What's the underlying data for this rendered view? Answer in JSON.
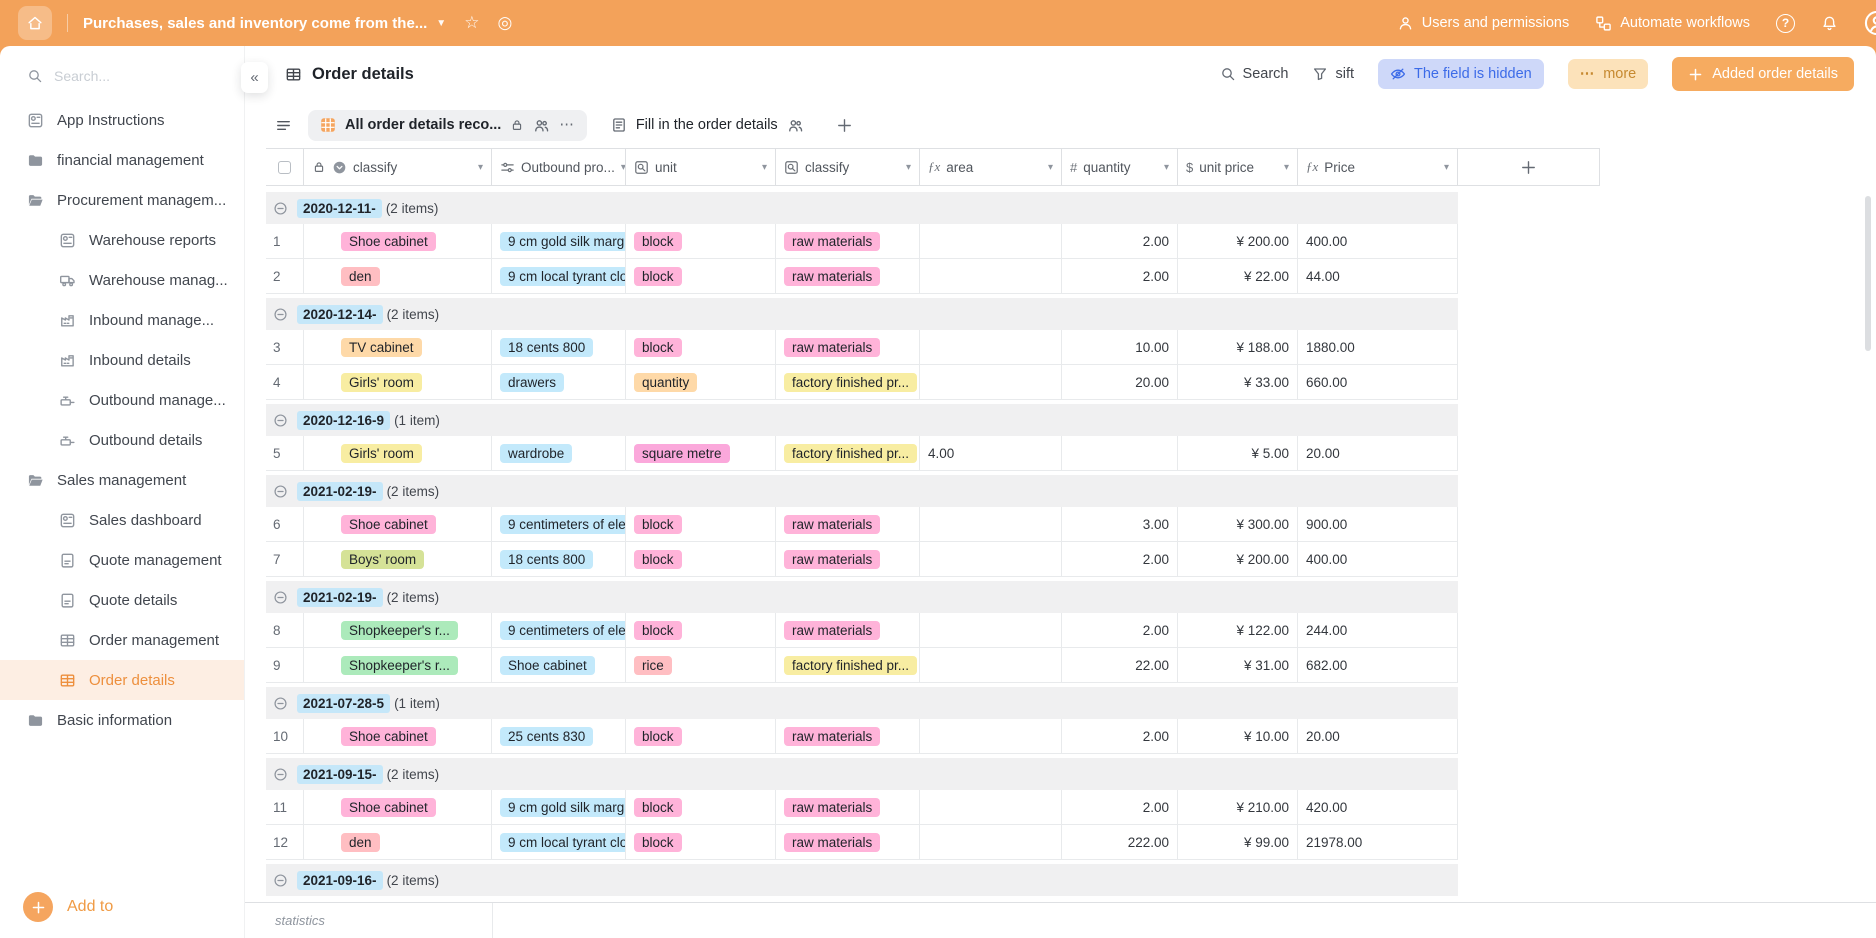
{
  "topbar": {
    "title": "Purchases, sales and inventory come from the...",
    "users_permissions": "Users and permissions",
    "automate_workflows": "Automate workflows",
    "help": "?"
  },
  "sidebar": {
    "search_placeholder": "Search...",
    "items": [
      {
        "label": "App Instructions",
        "icon": "chart",
        "depth": 0
      },
      {
        "label": "financial management",
        "icon": "folder",
        "depth": 0
      },
      {
        "label": "Procurement managem...",
        "icon": "folder-open",
        "depth": 0
      },
      {
        "label": "Warehouse reports",
        "icon": "chart",
        "depth": 1
      },
      {
        "label": "Warehouse manag...",
        "icon": "truck",
        "depth": 1
      },
      {
        "label": "Inbound manage...",
        "icon": "factory",
        "depth": 1
      },
      {
        "label": "Inbound details",
        "icon": "factory",
        "depth": 1
      },
      {
        "label": "Outbound manage...",
        "icon": "valve",
        "depth": 1
      },
      {
        "label": "Outbound details",
        "icon": "valve",
        "depth": 1
      },
      {
        "label": "Sales management",
        "icon": "folder-open",
        "depth": 0
      },
      {
        "label": "Sales dashboard",
        "icon": "chart",
        "depth": 1
      },
      {
        "label": "Quote management",
        "icon": "doc",
        "depth": 1
      },
      {
        "label": "Quote details",
        "icon": "doc",
        "depth": 1
      },
      {
        "label": "Order management",
        "icon": "book",
        "depth": 1
      },
      {
        "label": "Order details",
        "icon": "book",
        "depth": 1,
        "active": true
      },
      {
        "label": "Basic information",
        "icon": "folder",
        "depth": 0
      }
    ],
    "add_button": "Add to"
  },
  "header": {
    "title": "Order details",
    "search": "Search",
    "filter": "sift",
    "hidden_field": "The field is hidden",
    "more": "more",
    "add_record": "Added order details"
  },
  "tabs": {
    "active": "All order details reco...",
    "second": "Fill in the order details"
  },
  "table": {
    "columns": [
      {
        "label": "classify",
        "icon": "select",
        "locked": true
      },
      {
        "label": "Outbound pro...",
        "icon": "relation"
      },
      {
        "label": "unit",
        "icon": "lookup"
      },
      {
        "label": "classify",
        "icon": "lookup"
      },
      {
        "label": "area",
        "icon": "fx"
      },
      {
        "label": "quantity",
        "icon": "hash"
      },
      {
        "label": "unit price",
        "icon": "dollar"
      },
      {
        "label": "Price",
        "icon": "fx"
      }
    ],
    "tag_colors": {
      "pink": "#FFB3D9",
      "salmon": "#FFBEC2",
      "blue": "#C3E9FB",
      "orange": "#FED9A8",
      "yellow": "#F8EDA2",
      "lime": "#D5E297",
      "green": "#ACEABB",
      "magenta": "#FBA8DB"
    },
    "groups": [
      {
        "date": "2020-12-11-",
        "count": "(2 items)",
        "rows": [
          {
            "num": "1",
            "classify": {
              "text": "Shoe cabinet",
              "color": "pink"
            },
            "product": {
              "text": "9 cm gold silk marg",
              "color": "blue"
            },
            "unit": {
              "text": "block",
              "color": "pink"
            },
            "classify2": {
              "text": "raw materials",
              "color": "pink"
            },
            "area": "",
            "quantity": "2.00",
            "unit_price": "¥ 200.00",
            "price": "400.00"
          },
          {
            "num": "2",
            "classify": {
              "text": "den",
              "color": "salmon"
            },
            "product": {
              "text": "9 cm local tyrant clot",
              "color": "blue"
            },
            "unit": {
              "text": "block",
              "color": "pink"
            },
            "classify2": {
              "text": "raw materials",
              "color": "pink"
            },
            "area": "",
            "quantity": "2.00",
            "unit_price": "¥ 22.00",
            "price": "44.00"
          }
        ]
      },
      {
        "date": "2020-12-14-",
        "count": "(2 items)",
        "rows": [
          {
            "num": "3",
            "classify": {
              "text": "TV cabinet",
              "color": "orange"
            },
            "product": {
              "text": "18 cents 800",
              "color": "blue"
            },
            "unit": {
              "text": "block",
              "color": "pink"
            },
            "classify2": {
              "text": "raw materials",
              "color": "pink"
            },
            "area": "",
            "quantity": "10.00",
            "unit_price": "¥ 188.00",
            "price": "1880.00"
          },
          {
            "num": "4",
            "classify": {
              "text": "Girls' room",
              "color": "yellow"
            },
            "product": {
              "text": "drawers",
              "color": "blue"
            },
            "unit": {
              "text": "quantity",
              "color": "orange"
            },
            "classify2": {
              "text": "factory finished pr...",
              "color": "yellow"
            },
            "area": "",
            "quantity": "20.00",
            "unit_price": "¥ 33.00",
            "price": "660.00"
          }
        ]
      },
      {
        "date": "2020-12-16-9",
        "count": "(1 item)",
        "rows": [
          {
            "num": "5",
            "classify": {
              "text": "Girls' room",
              "color": "yellow"
            },
            "product": {
              "text": "wardrobe",
              "color": "blue"
            },
            "unit": {
              "text": "square metre",
              "color": "magenta"
            },
            "classify2": {
              "text": "factory finished pr...",
              "color": "yellow"
            },
            "area": "4.00",
            "quantity": "",
            "unit_price": "¥ 5.00",
            "price": "20.00"
          }
        ]
      },
      {
        "date": "2021-02-19-",
        "count": "(2 items)",
        "rows": [
          {
            "num": "6",
            "classify": {
              "text": "Shoe cabinet",
              "color": "pink"
            },
            "product": {
              "text": "9 centimeters of eleg",
              "color": "blue"
            },
            "unit": {
              "text": "block",
              "color": "pink"
            },
            "classify2": {
              "text": "raw materials",
              "color": "pink"
            },
            "area": "",
            "quantity": "3.00",
            "unit_price": "¥ 300.00",
            "price": "900.00"
          },
          {
            "num": "7",
            "classify": {
              "text": "Boys' room",
              "color": "lime"
            },
            "product": {
              "text": "18 cents 800",
              "color": "blue"
            },
            "unit": {
              "text": "block",
              "color": "pink"
            },
            "classify2": {
              "text": "raw materials",
              "color": "pink"
            },
            "area": "",
            "quantity": "2.00",
            "unit_price": "¥ 200.00",
            "price": "400.00"
          }
        ]
      },
      {
        "date": "2021-02-19-",
        "count": "(2 items)",
        "rows": [
          {
            "num": "8",
            "classify": {
              "text": "Shopkeeper's r...",
              "color": "green"
            },
            "product": {
              "text": "9 centimeters of eleg",
              "color": "blue"
            },
            "unit": {
              "text": "block",
              "color": "pink"
            },
            "classify2": {
              "text": "raw materials",
              "color": "pink"
            },
            "area": "",
            "quantity": "2.00",
            "unit_price": "¥ 122.00",
            "price": "244.00"
          },
          {
            "num": "9",
            "classify": {
              "text": "Shopkeeper's r...",
              "color": "green"
            },
            "product": {
              "text": "Shoe cabinet",
              "color": "blue"
            },
            "unit": {
              "text": "rice",
              "color": "salmon"
            },
            "classify2": {
              "text": "factory finished pr...",
              "color": "yellow"
            },
            "area": "",
            "quantity": "22.00",
            "unit_price": "¥ 31.00",
            "price": "682.00"
          }
        ]
      },
      {
        "date": "2021-07-28-5",
        "count": "(1 item)",
        "rows": [
          {
            "num": "10",
            "classify": {
              "text": "Shoe cabinet",
              "color": "pink"
            },
            "product": {
              "text": "25 cents 830",
              "color": "blue"
            },
            "unit": {
              "text": "block",
              "color": "pink"
            },
            "classify2": {
              "text": "raw materials",
              "color": "pink"
            },
            "area": "",
            "quantity": "2.00",
            "unit_price": "¥ 10.00",
            "price": "20.00"
          }
        ]
      },
      {
        "date": "2021-09-15-",
        "count": "(2 items)",
        "rows": [
          {
            "num": "11",
            "classify": {
              "text": "Shoe cabinet",
              "color": "pink"
            },
            "product": {
              "text": "9 cm gold silk marg",
              "color": "blue"
            },
            "unit": {
              "text": "block",
              "color": "pink"
            },
            "classify2": {
              "text": "raw materials",
              "color": "pink"
            },
            "area": "",
            "quantity": "2.00",
            "unit_price": "¥ 210.00",
            "price": "420.00"
          },
          {
            "num": "12",
            "classify": {
              "text": "den",
              "color": "salmon"
            },
            "product": {
              "text": "9 cm local tyrant clot",
              "color": "blue"
            },
            "unit": {
              "text": "block",
              "color": "pink"
            },
            "classify2": {
              "text": "raw materials",
              "color": "pink"
            },
            "area": "",
            "quantity": "222.00",
            "unit_price": "¥ 99.00",
            "price": "21978.00"
          }
        ]
      },
      {
        "date": "2021-09-16-",
        "count": "(2 items)",
        "rows": []
      }
    ],
    "footer": "statistics"
  }
}
